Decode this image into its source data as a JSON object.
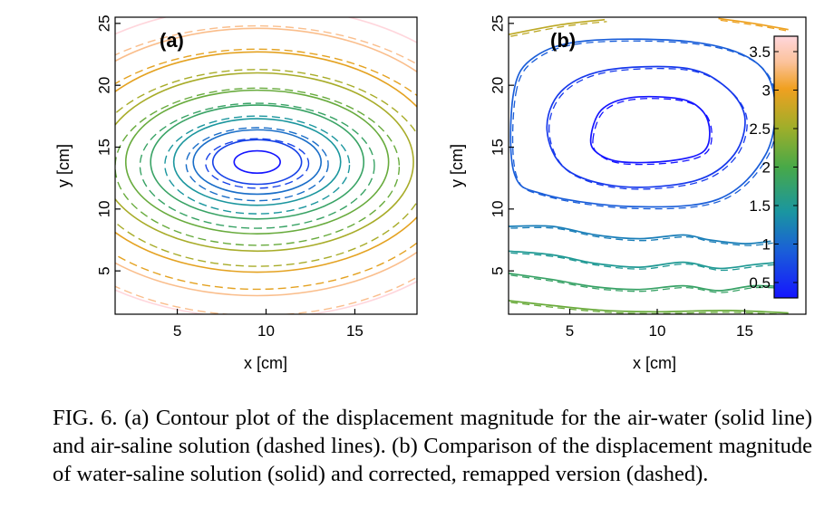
{
  "chart_data": [
    {
      "type": "contour",
      "panel_label": "(a)",
      "xlabel": "x [cm]",
      "ylabel": "y [cm]",
      "xlim": [
        1.5,
        18.5
      ],
      "ylim": [
        1.5,
        25.5
      ],
      "xticks": [
        5,
        10,
        15
      ],
      "yticks": [
        5,
        10,
        15,
        20,
        25
      ],
      "center": [
        9.5,
        13.8
      ],
      "solid_semi_axes_cm": [
        [
          1.3,
          0.9
        ],
        [
          2.5,
          1.8
        ],
        [
          3.6,
          2.6
        ],
        [
          4.7,
          3.5
        ],
        [
          6.0,
          4.6
        ],
        [
          7.4,
          5.8
        ],
        [
          8.8,
          7.2
        ],
        [
          10.4,
          8.9
        ],
        [
          12.2,
          10.8
        ],
        [
          14.0,
          12.6
        ]
      ],
      "dashed_semi_axes_cm": [
        [
          2.9,
          2.0
        ],
        [
          4.0,
          2.95
        ],
        [
          5.2,
          3.95
        ],
        [
          6.6,
          5.05
        ],
        [
          8.0,
          6.35
        ],
        [
          9.6,
          7.95
        ],
        [
          11.4,
          9.7
        ],
        [
          13.3,
          11.7
        ]
      ],
      "contour_values": [
        0.3,
        0.6,
        0.9,
        1.2,
        1.5,
        1.8,
        2.1,
        2.4,
        2.7,
        3.0
      ]
    },
    {
      "type": "contour",
      "panel_label": "(b)",
      "xlabel": "x [cm]",
      "ylabel": "y [cm]",
      "xlim": [
        1.5,
        18.5
      ],
      "ylim": [
        1.5,
        25.5
      ],
      "xticks": [
        5,
        10,
        15
      ],
      "yticks": [
        5,
        10,
        15,
        20,
        25
      ],
      "colorbar": {
        "min": 0.3,
        "max": 3.7,
        "ticks": [
          0.5,
          1,
          1.5,
          2,
          2.5,
          3,
          3.5
        ],
        "tick_labels": [
          "0.5",
          "1",
          "1.5",
          "2",
          "2.5",
          "3",
          "3.5"
        ]
      },
      "closed_contours": [
        {
          "value": 0.3,
          "points": [
            [
              6.2,
              15.7
            ],
            [
              6.8,
              18.0
            ],
            [
              8.5,
              19.0
            ],
            [
              11.3,
              18.9
            ],
            [
              12.6,
              17.9
            ],
            [
              13.0,
              16.2
            ],
            [
              12.6,
              14.6
            ],
            [
              10.8,
              13.9
            ],
            [
              8.0,
              13.8
            ],
            [
              6.6,
              14.5
            ]
          ]
        },
        {
          "value": 0.6,
          "points": [
            [
              3.7,
              16.4
            ],
            [
              4.5,
              19.5
            ],
            [
              7.0,
              21.2
            ],
            [
              11.5,
              21.4
            ],
            [
              13.8,
              20.0
            ],
            [
              15.0,
              17.5
            ],
            [
              14.4,
              14.4
            ],
            [
              12.2,
              12.3
            ],
            [
              8.0,
              11.8
            ],
            [
              4.8,
              13.2
            ]
          ]
        },
        {
          "value": 0.9,
          "points": [
            [
              1.8,
              19.5
            ],
            [
              3.0,
              22.3
            ],
            [
              6.0,
              23.6
            ],
            [
              12.0,
              23.5
            ],
            [
              15.5,
              22.0
            ],
            [
              16.7,
              19.0
            ],
            [
              16.2,
              14.4
            ],
            [
              13.5,
              10.8
            ],
            [
              8.5,
              10.2
            ],
            [
              3.5,
              11.2
            ],
            [
              1.8,
              13.0
            ]
          ]
        }
      ],
      "open_contours": [
        {
          "value": 1.2,
          "points": [
            [
              1.5,
              8.6
            ],
            [
              4.0,
              8.6
            ],
            [
              6.5,
              7.9
            ],
            [
              9.0,
              7.6
            ],
            [
              11.5,
              7.9
            ],
            [
              13.0,
              7.5
            ],
            [
              15.0,
              7.2
            ],
            [
              16.5,
              7.4
            ]
          ]
        },
        {
          "value": 1.5,
          "points": [
            [
              1.5,
              6.6
            ],
            [
              4.0,
              6.3
            ],
            [
              6.5,
              5.6
            ],
            [
              9.0,
              5.3
            ],
            [
              11.5,
              5.7
            ],
            [
              13.5,
              5.2
            ],
            [
              15.5,
              5.5
            ],
            [
              17.0,
              5.7
            ]
          ]
        },
        {
          "value": 1.8,
          "points": [
            [
              1.5,
              4.8
            ],
            [
              4.0,
              4.3
            ],
            [
              6.5,
              3.7
            ],
            [
              9.0,
              3.5
            ],
            [
              11.5,
              3.8
            ],
            [
              13.5,
              3.4
            ],
            [
              15.5,
              3.8
            ],
            [
              17.5,
              3.7
            ]
          ]
        },
        {
          "value": 2.2,
          "points": [
            [
              1.5,
              2.6
            ],
            [
              4.0,
              2.2
            ],
            [
              7.0,
              1.8
            ],
            [
              10.0,
              1.7
            ],
            [
              14.0,
              1.8
            ],
            [
              17.5,
              1.6
            ]
          ]
        },
        {
          "value": 2.7,
          "points": [
            [
              1.5,
              24.1
            ],
            [
              4.5,
              24.9
            ],
            [
              7.0,
              25.3
            ]
          ]
        },
        {
          "value": 3.0,
          "points": [
            [
              13.5,
              25.4
            ],
            [
              15.5,
              25.0
            ],
            [
              17.5,
              24.5
            ]
          ]
        }
      ]
    }
  ],
  "caption": "FIG. 6. (a) Contour plot of the displacement magnitude for the air-water (solid line) and air-saline solution (dashed lines). (b) Comparison of the displacement magnitude of water-saline solution (solid) and corrected, remapped version (dashed)."
}
